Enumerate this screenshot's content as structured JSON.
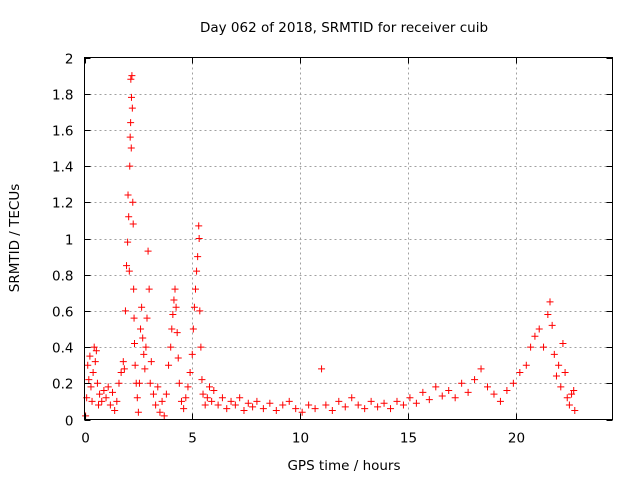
{
  "chart_data": {
    "type": "scatter",
    "title": "Day 062 of 2018, SRMTID for receiver cuib",
    "xlabel": "GPS time / hours",
    "ylabel": "SRMTID / TECUs",
    "xlim": [
      0,
      24.5
    ],
    "ylim": [
      0,
      2
    ],
    "xticks": [
      0,
      5,
      10,
      15,
      20
    ],
    "xtick_labels": [
      "0",
      "5",
      "10",
      "15",
      "20"
    ],
    "yticks": [
      0,
      0.2,
      0.4,
      0.6,
      0.8,
      1,
      1.2,
      1.4,
      1.6,
      1.8,
      2
    ],
    "ytick_labels": [
      "0",
      "0.2",
      "0.4",
      "0.6",
      "0.8",
      "1",
      "1.2",
      "1.4",
      "1.6",
      "1.8",
      "2"
    ],
    "grid": true,
    "marker": "+",
    "marker_color": "#ff0000",
    "series": [
      {
        "name": "SRMTID",
        "points": [
          [
            0.05,
            0.02
          ],
          [
            0.1,
            0.12
          ],
          [
            0.15,
            0.3
          ],
          [
            0.2,
            0.22
          ],
          [
            0.25,
            0.35
          ],
          [
            0.3,
            0.18
          ],
          [
            0.35,
            0.1
          ],
          [
            0.4,
            0.26
          ],
          [
            0.45,
            0.4
          ],
          [
            0.5,
            0.32
          ],
          [
            0.55,
            0.38
          ],
          [
            0.6,
            0.2
          ],
          [
            0.65,
            0.08
          ],
          [
            0.7,
            0.14
          ],
          [
            0.8,
            0.1
          ],
          [
            0.9,
            0.16
          ],
          [
            1.0,
            0.12
          ],
          [
            1.1,
            0.18
          ],
          [
            1.2,
            0.08
          ],
          [
            1.3,
            0.15
          ],
          [
            1.4,
            0.05
          ],
          [
            1.5,
            0.1
          ],
          [
            1.6,
            0.2
          ],
          [
            1.7,
            0.26
          ],
          [
            1.8,
            0.32
          ],
          [
            1.85,
            0.28
          ],
          [
            1.9,
            0.6
          ],
          [
            1.95,
            0.85
          ],
          [
            2.0,
            0.98
          ],
          [
            2.02,
            1.24
          ],
          [
            2.05,
            1.12
          ],
          [
            2.08,
            0.82
          ],
          [
            2.1,
            1.4
          ],
          [
            2.12,
            1.56
          ],
          [
            2.14,
            1.64
          ],
          [
            2.15,
            1.88
          ],
          [
            2.17,
            1.5
          ],
          [
            2.18,
            1.78
          ],
          [
            2.2,
            1.9
          ],
          [
            2.22,
            1.72
          ],
          [
            2.24,
            1.2
          ],
          [
            2.26,
            1.08
          ],
          [
            2.28,
            0.72
          ],
          [
            2.3,
            0.56
          ],
          [
            2.32,
            0.42
          ],
          [
            2.35,
            0.3
          ],
          [
            2.4,
            0.2
          ],
          [
            2.45,
            0.12
          ],
          [
            2.5,
            0.04
          ],
          [
            2.55,
            0.2
          ],
          [
            2.6,
            0.5
          ],
          [
            2.65,
            0.62
          ],
          [
            2.7,
            0.45
          ],
          [
            2.75,
            0.36
          ],
          [
            2.8,
            0.28
          ],
          [
            2.85,
            0.4
          ],
          [
            2.9,
            0.56
          ],
          [
            2.95,
            0.93
          ],
          [
            3.0,
            0.72
          ],
          [
            3.05,
            0.2
          ],
          [
            3.1,
            0.32
          ],
          [
            3.2,
            0.14
          ],
          [
            3.3,
            0.08
          ],
          [
            3.4,
            0.18
          ],
          [
            3.5,
            0.04
          ],
          [
            3.6,
            0.1
          ],
          [
            3.7,
            0.02
          ],
          [
            3.8,
            0.14
          ],
          [
            3.9,
            0.3
          ],
          [
            4.0,
            0.4
          ],
          [
            4.05,
            0.5
          ],
          [
            4.1,
            0.58
          ],
          [
            4.15,
            0.66
          ],
          [
            4.2,
            0.72
          ],
          [
            4.25,
            0.62
          ],
          [
            4.3,
            0.48
          ],
          [
            4.35,
            0.34
          ],
          [
            4.4,
            0.2
          ],
          [
            4.5,
            0.1
          ],
          [
            4.6,
            0.06
          ],
          [
            4.7,
            0.12
          ],
          [
            4.8,
            0.18
          ],
          [
            4.9,
            0.26
          ],
          [
            5.0,
            0.36
          ],
          [
            5.05,
            0.5
          ],
          [
            5.1,
            0.62
          ],
          [
            5.15,
            0.72
          ],
          [
            5.2,
            0.82
          ],
          [
            5.25,
            0.9
          ],
          [
            5.3,
            1.07
          ],
          [
            5.32,
            1.0
          ],
          [
            5.35,
            0.6
          ],
          [
            5.4,
            0.4
          ],
          [
            5.45,
            0.22
          ],
          [
            5.5,
            0.14
          ],
          [
            5.6,
            0.08
          ],
          [
            5.7,
            0.12
          ],
          [
            5.8,
            0.18
          ],
          [
            5.9,
            0.1
          ],
          [
            6.0,
            0.16
          ],
          [
            6.2,
            0.08
          ],
          [
            6.4,
            0.12
          ],
          [
            6.6,
            0.06
          ],
          [
            6.8,
            0.1
          ],
          [
            7.0,
            0.08
          ],
          [
            7.2,
            0.12
          ],
          [
            7.4,
            0.05
          ],
          [
            7.6,
            0.09
          ],
          [
            7.8,
            0.07
          ],
          [
            8.0,
            0.1
          ],
          [
            8.3,
            0.06
          ],
          [
            8.6,
            0.09
          ],
          [
            8.9,
            0.05
          ],
          [
            9.2,
            0.08
          ],
          [
            9.5,
            0.1
          ],
          [
            9.8,
            0.06
          ],
          [
            10.1,
            0.04
          ],
          [
            10.4,
            0.08
          ],
          [
            10.7,
            0.06
          ],
          [
            11.0,
            0.28
          ],
          [
            11.2,
            0.08
          ],
          [
            11.5,
            0.05
          ],
          [
            11.8,
            0.1
          ],
          [
            12.1,
            0.07
          ],
          [
            12.4,
            0.12
          ],
          [
            12.7,
            0.08
          ],
          [
            13.0,
            0.06
          ],
          [
            13.3,
            0.1
          ],
          [
            13.6,
            0.07
          ],
          [
            13.9,
            0.09
          ],
          [
            14.2,
            0.06
          ],
          [
            14.5,
            0.1
          ],
          [
            14.8,
            0.08
          ],
          [
            15.1,
            0.12
          ],
          [
            15.4,
            0.09
          ],
          [
            15.7,
            0.15
          ],
          [
            16.0,
            0.11
          ],
          [
            16.3,
            0.18
          ],
          [
            16.6,
            0.13
          ],
          [
            16.9,
            0.16
          ],
          [
            17.2,
            0.12
          ],
          [
            17.5,
            0.2
          ],
          [
            17.8,
            0.15
          ],
          [
            18.1,
            0.22
          ],
          [
            18.4,
            0.28
          ],
          [
            18.7,
            0.18
          ],
          [
            19.0,
            0.14
          ],
          [
            19.3,
            0.1
          ],
          [
            19.6,
            0.16
          ],
          [
            19.9,
            0.2
          ],
          [
            20.2,
            0.26
          ],
          [
            20.5,
            0.3
          ],
          [
            20.7,
            0.4
          ],
          [
            20.9,
            0.46
          ],
          [
            21.1,
            0.5
          ],
          [
            21.3,
            0.4
          ],
          [
            21.5,
            0.58
          ],
          [
            21.6,
            0.65
          ],
          [
            21.7,
            0.52
          ],
          [
            21.8,
            0.36
          ],
          [
            21.9,
            0.24
          ],
          [
            22.0,
            0.3
          ],
          [
            22.1,
            0.18
          ],
          [
            22.2,
            0.42
          ],
          [
            22.3,
            0.26
          ],
          [
            22.4,
            0.12
          ],
          [
            22.5,
            0.08
          ],
          [
            22.6,
            0.14
          ],
          [
            22.7,
            0.16
          ],
          [
            22.75,
            0.05
          ]
        ]
      }
    ]
  }
}
